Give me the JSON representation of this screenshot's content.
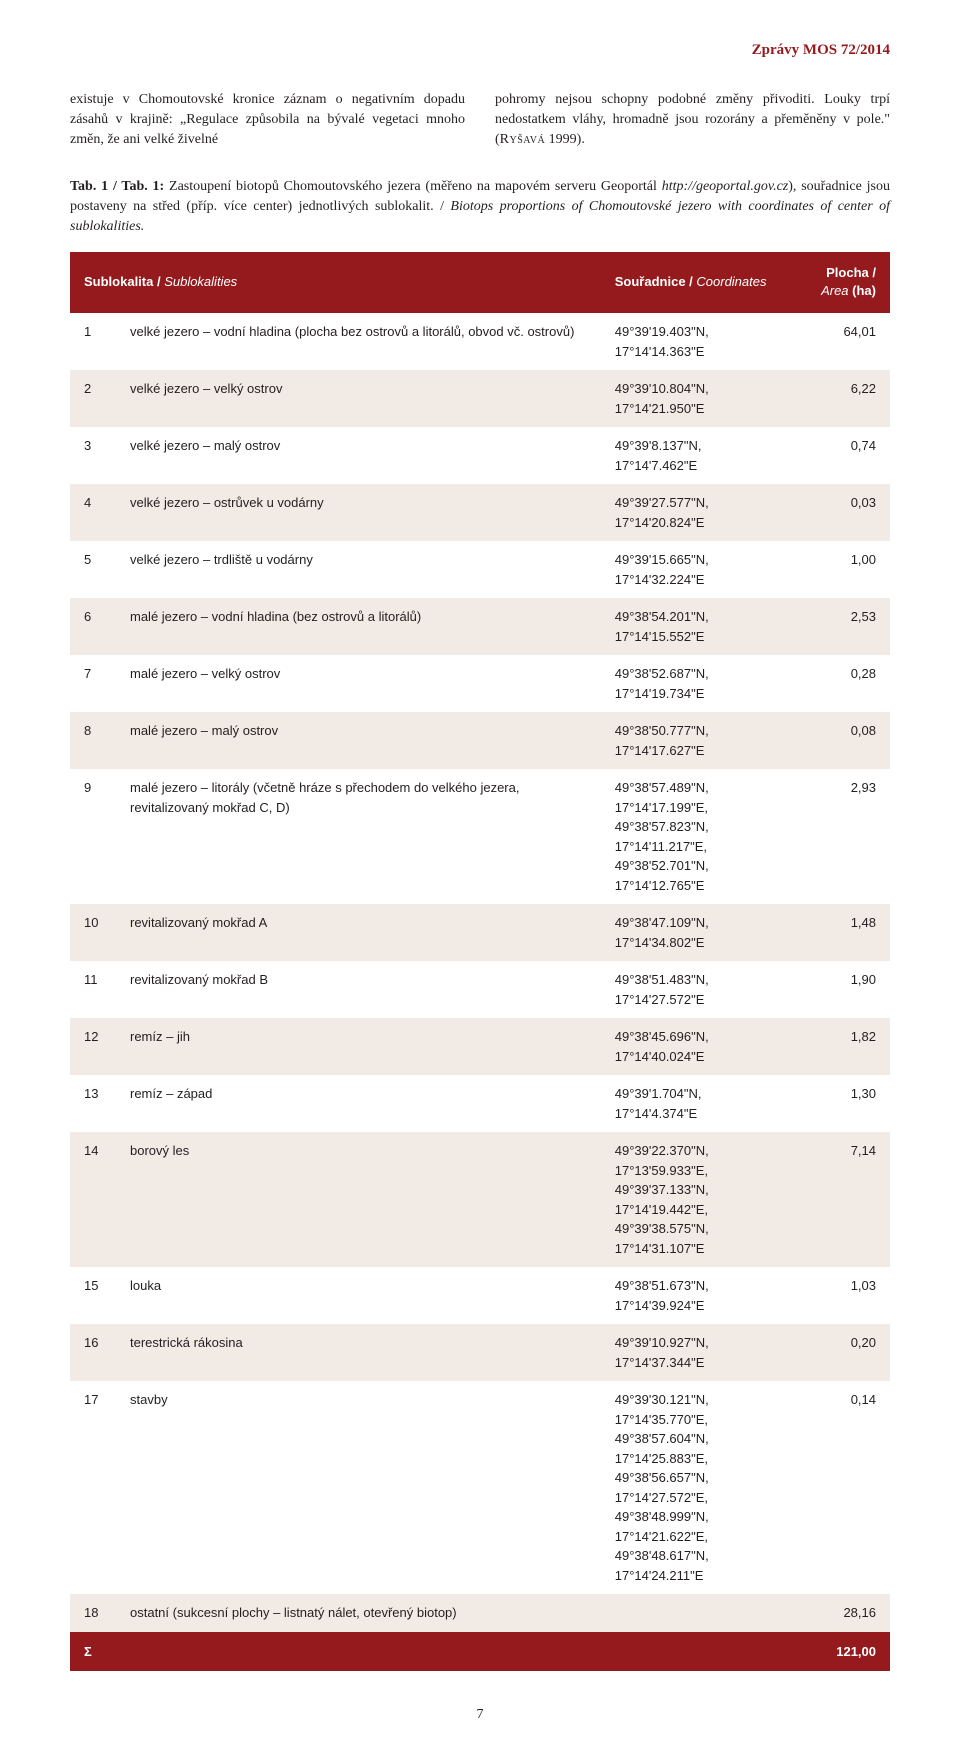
{
  "header": "Zprávy MOS 72/2014",
  "body_left": "existuje v Chomoutovské kronice záznam o negativním dopadu zásahů v krajině: „Regulace způsobila na bývalé vegetaci mnoho změn, že ani velké živelné",
  "body_right_a": "pohromy nejsou schopny podobné změny přivoditi. Louky trpí nedostatkem vláhy, hromadně jsou rozorány a přeměněny v pole.\" (",
  "body_right_ref": "Ryšavá",
  "body_right_b": " 1999).",
  "caption_bold": "Tab. 1 / Tab. 1:",
  "caption_text_a": " Zastoupení biotopů Chomoutovského jezera (měřeno na mapovém serveru Geoportál ",
  "caption_link": "http://geoportal.gov.cz",
  "caption_text_b": "), souřadnice jsou postaveny na střed (příp. více center) jednotlivých sublokalit. / ",
  "caption_italic": "Biotops proportions of Chomoutovské jezero with coordinates of center of sublokalities.",
  "table": {
    "head_sub_a": "Sublokalita / ",
    "head_sub_b": "Sublokalities",
    "head_coord_a": "Souřadnice / ",
    "head_coord_b": "Coordinates",
    "head_area_a": "Plocha / ",
    "head_area_b": "Area",
    "head_area_c": " (ha)",
    "rows": [
      {
        "n": "1",
        "d": "velké jezero – vodní hladina (plocha bez ostrovů a litorálů, obvod vč. ostrovů)",
        "c": "49°39'19.403\"N, 17°14'14.363\"E",
        "a": "64,01"
      },
      {
        "n": "2",
        "d": "velké jezero – velký ostrov",
        "c": "49°39'10.804\"N, 17°14'21.950\"E",
        "a": "6,22"
      },
      {
        "n": "3",
        "d": "velké jezero – malý ostrov",
        "c": "49°39'8.137\"N, 17°14'7.462\"E",
        "a": "0,74"
      },
      {
        "n": "4",
        "d": "velké jezero – ostrůvek u vodárny",
        "c": "49°39'27.577\"N, 17°14'20.824\"E",
        "a": "0,03"
      },
      {
        "n": "5",
        "d": "velké jezero – trdliště u vodárny",
        "c": "49°39'15.665\"N, 17°14'32.224\"E",
        "a": "1,00"
      },
      {
        "n": "6",
        "d": "malé jezero – vodní hladina (bez ostrovů a litorálů)",
        "c": "49°38'54.201\"N, 17°14'15.552\"E",
        "a": "2,53"
      },
      {
        "n": "7",
        "d": "malé jezero – velký ostrov",
        "c": "49°38'52.687\"N, 17°14'19.734\"E",
        "a": "0,28"
      },
      {
        "n": "8",
        "d": "malé jezero – malý ostrov",
        "c": "49°38'50.777\"N, 17°14'17.627\"E",
        "a": "0,08"
      },
      {
        "n": "9",
        "d": "malé jezero – litorály (včetně hráze s přechodem do velkého jezera, revitalizovaný mokřad C, D)",
        "c": "49°38'57.489\"N, 17°14'17.199\"E,\n49°38'57.823\"N, 17°14'11.217\"E,\n49°38'52.701\"N, 17°14'12.765\"E",
        "a": "2,93"
      },
      {
        "n": "10",
        "d": "revitalizovaný mokřad A",
        "c": "49°38'47.109\"N, 17°14'34.802\"E",
        "a": "1,48"
      },
      {
        "n": "11",
        "d": "revitalizovaný mokřad B",
        "c": "49°38'51.483\"N, 17°14'27.572\"E",
        "a": "1,90"
      },
      {
        "n": "12",
        "d": "remíz – jih",
        "c": "49°38'45.696\"N, 17°14'40.024\"E",
        "a": "1,82"
      },
      {
        "n": "13",
        "d": "remíz – západ",
        "c": "49°39'1.704\"N, 17°14'4.374\"E",
        "a": "1,30"
      },
      {
        "n": "14",
        "d": "borový les",
        "c": "49°39'22.370\"N, 17°13'59.933\"E,\n49°39'37.133\"N, 17°14'19.442\"E,\n49°39'38.575\"N, 17°14'31.107\"E",
        "a": "7,14"
      },
      {
        "n": "15",
        "d": "louka",
        "c": "49°38'51.673\"N, 17°14'39.924\"E",
        "a": "1,03"
      },
      {
        "n": "16",
        "d": "terestrická rákosina",
        "c": "49°39'10.927\"N, 17°14'37.344\"E",
        "a": "0,20"
      },
      {
        "n": "17",
        "d": "stavby",
        "c": "49°39'30.121\"N, 17°14'35.770\"E,\n49°38'57.604\"N, 17°14'25.883\"E,\n49°38'56.657\"N, 17°14'27.572\"E,\n49°38'48.999\"N, 17°14'21.622\"E,\n49°38'48.617\"N, 17°14'24.211\"E",
        "a": "0,14"
      },
      {
        "n": "18",
        "d": "ostatní (sukcesní plochy – listnatý nálet, otevřený biotop)",
        "c": "",
        "a": "28,16"
      }
    ],
    "sum_label": "Σ",
    "sum_value": "121,00"
  },
  "page_number": "7",
  "colors": {
    "accent": "#941a1d",
    "row_alt": "#f2ebe5",
    "text": "#231f20"
  }
}
